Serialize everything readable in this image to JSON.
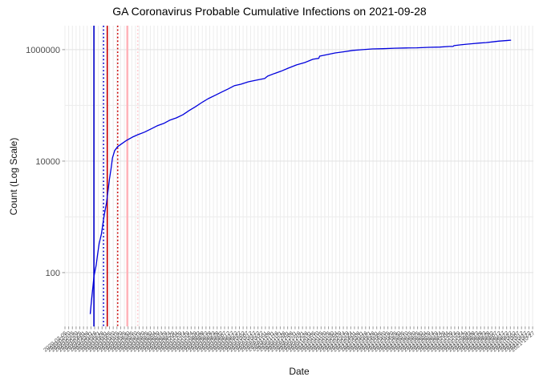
{
  "title": "GA Coronavirus Probable Cumulative Infections on 2021-09-28",
  "chart_data": {
    "type": "line",
    "title": "GA Coronavirus Probable Cumulative Infections on 2021-09-28",
    "xlabel": "Date",
    "ylabel": "Count (Log Scale)",
    "y_scale": "log10",
    "ylim": [
      11,
      2690000
    ],
    "grid": true,
    "legend": "none",
    "y_tick_labels": [
      {
        "value": 100,
        "label": "100"
      },
      {
        "value": 10000,
        "label": "10000"
      },
      {
        "value": 1000000,
        "label": "1000000"
      }
    ],
    "y_minor_decades": [
      10,
      1000,
      100000
    ],
    "x_axis": {
      "start": "2020-02-05",
      "end": "2021-10-28",
      "tick_step_days": 5,
      "tick_label_format": "YYYY-MM-DD",
      "labels_rotated_deg": 40,
      "labels_overlap": true
    },
    "colors": {
      "line": "#0000DD",
      "grid_major": "#e2e2e2",
      "grid_minor": "#ececec",
      "axis_text": "#4d4d4d",
      "tick_mark": "#999999"
    },
    "vlines": [
      {
        "date": "2020-03-15",
        "color": "#0000CC",
        "style": "solid",
        "width": 1.6
      },
      {
        "date": "2020-03-28",
        "color": "#0000CC",
        "style": "dotted",
        "width": 1.6
      },
      {
        "date": "2020-04-02",
        "color": "#CC0000",
        "style": "solid",
        "width": 1.6
      },
      {
        "date": "2020-04-16",
        "color": "#CC0000",
        "style": "dotted",
        "width": 1.6
      },
      {
        "date": "2020-04-29",
        "color": "#FFB3BA",
        "style": "solid",
        "width": 2.5
      },
      {
        "date": "2020-05-13",
        "color": "#FFC9CE",
        "style": "dotted",
        "width": 1.6
      }
    ],
    "series": [
      {
        "name": "probable cumulative infections",
        "color": "#0000DD",
        "points": [
          [
            "2020-03-10",
            18
          ],
          [
            "2020-03-11",
            25
          ],
          [
            "2020-03-13",
            45
          ],
          [
            "2020-03-15",
            85
          ],
          [
            "2020-03-18",
            135
          ],
          [
            "2020-03-20",
            214
          ],
          [
            "2020-03-22",
            330
          ],
          [
            "2020-03-25",
            490
          ],
          [
            "2020-03-27",
            730
          ],
          [
            "2020-03-29",
            1120
          ],
          [
            "2020-04-01",
            1780
          ],
          [
            "2020-04-03",
            2950
          ],
          [
            "2020-04-05",
            4800
          ],
          [
            "2020-04-07",
            7200
          ],
          [
            "2020-04-09",
            11400
          ],
          [
            "2020-04-12",
            15500
          ],
          [
            "2020-04-16",
            18200
          ],
          [
            "2020-04-22",
            20800
          ],
          [
            "2020-04-28",
            23600
          ],
          [
            "2020-05-06",
            27000
          ],
          [
            "2020-05-13",
            29700
          ],
          [
            "2020-05-22",
            33000
          ],
          [
            "2020-05-31",
            37800
          ],
          [
            "2020-06-08",
            43000
          ],
          [
            "2020-06-17",
            47500
          ],
          [
            "2020-06-25",
            54100
          ],
          [
            "2020-07-04",
            59600
          ],
          [
            "2020-07-13",
            68200
          ],
          [
            "2020-07-21",
            80600
          ],
          [
            "2020-07-30",
            95100
          ],
          [
            "2020-08-07",
            112000
          ],
          [
            "2020-08-16",
            132000
          ],
          [
            "2020-08-25",
            151000
          ],
          [
            "2020-09-03",
            173000
          ],
          [
            "2020-09-12",
            198000
          ],
          [
            "2020-09-20",
            225000
          ],
          [
            "2020-09-29",
            240000
          ],
          [
            "2020-10-09",
            265000
          ],
          [
            "2020-10-20",
            284000
          ],
          [
            "2020-10-31",
            303000
          ],
          [
            "2020-11-04",
            335000
          ],
          [
            "2020-11-13",
            372000
          ],
          [
            "2020-11-22",
            410000
          ],
          [
            "2020-12-02",
            467000
          ],
          [
            "2020-12-13",
            532000
          ],
          [
            "2020-12-24",
            587000
          ],
          [
            "2021-01-04",
            671000
          ],
          [
            "2021-01-12",
            700000
          ],
          [
            "2021-01-13",
            765000
          ],
          [
            "2021-01-23",
            815000
          ],
          [
            "2021-02-03",
            872000
          ],
          [
            "2021-02-14",
            915000
          ],
          [
            "2021-02-27",
            970000
          ],
          [
            "2021-03-12",
            1000000
          ],
          [
            "2021-03-25",
            1030000
          ],
          [
            "2021-04-09",
            1040000
          ],
          [
            "2021-04-24",
            1060000
          ],
          [
            "2021-05-09",
            1070000
          ],
          [
            "2021-05-24",
            1080000
          ],
          [
            "2021-06-09",
            1100000
          ],
          [
            "2021-06-24",
            1110000
          ],
          [
            "2021-07-07",
            1140000
          ],
          [
            "2021-07-12",
            1145000
          ],
          [
            "2021-07-13",
            1180000
          ],
          [
            "2021-07-22",
            1220000
          ],
          [
            "2021-07-30",
            1250000
          ],
          [
            "2021-08-08",
            1280000
          ],
          [
            "2021-08-16",
            1310000
          ],
          [
            "2021-08-25",
            1340000
          ],
          [
            "2021-09-03",
            1380000
          ],
          [
            "2021-09-11",
            1420000
          ],
          [
            "2021-09-20",
            1450000
          ],
          [
            "2021-09-28",
            1480000
          ]
        ]
      }
    ]
  }
}
